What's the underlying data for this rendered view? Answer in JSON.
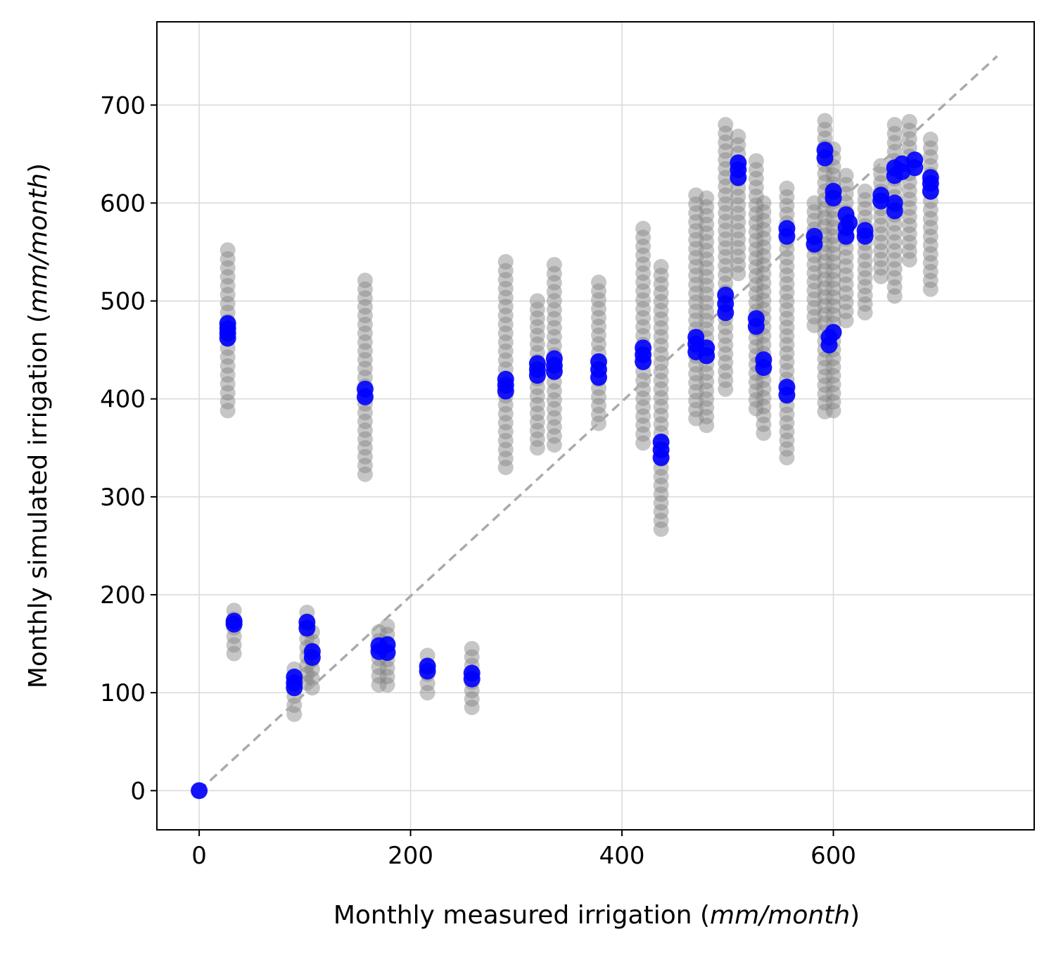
{
  "chart_data": {
    "type": "scatter",
    "xlabel": {
      "prefix": "Monthly measured irrigation (",
      "unit": "mm/month",
      "suffix": ")"
    },
    "ylabel": {
      "prefix": "Monthly simulated irrigation (",
      "unit": "mm/month",
      "suffix": ")"
    },
    "xlim": [
      -40,
      790
    ],
    "ylim": [
      -40,
      785
    ],
    "xticks": [
      0,
      200,
      400,
      600
    ],
    "yticks": [
      0,
      100,
      200,
      300,
      400,
      500,
      600,
      700
    ],
    "grid": true,
    "legend": false,
    "reference_line": {
      "x": [
        0,
        755
      ],
      "y": [
        0,
        750
      ],
      "style": "dashed",
      "color": "#aaaaaa"
    },
    "colors": {
      "ensemble": "#808080",
      "highlight": "#0000ff",
      "grid": "#d9d9d9"
    },
    "ensemble_ranges": [
      {
        "x": 0,
        "ymin": 0,
        "ymax": 0
      },
      {
        "x": 27,
        "ymin": 388,
        "ymax": 552
      },
      {
        "x": 33,
        "ymin": 140,
        "ymax": 184
      },
      {
        "x": 90,
        "ymin": 78,
        "ymax": 124
      },
      {
        "x": 102,
        "ymin": 110,
        "ymax": 182
      },
      {
        "x": 107,
        "ymin": 105,
        "ymax": 162
      },
      {
        "x": 157,
        "ymin": 323,
        "ymax": 521
      },
      {
        "x": 170,
        "ymin": 108,
        "ymax": 162
      },
      {
        "x": 178,
        "ymin": 108,
        "ymax": 168
      },
      {
        "x": 216,
        "ymin": 100,
        "ymax": 138
      },
      {
        "x": 258,
        "ymin": 85,
        "ymax": 145
      },
      {
        "x": 290,
        "ymin": 330,
        "ymax": 540
      },
      {
        "x": 320,
        "ymin": 350,
        "ymax": 500
      },
      {
        "x": 336,
        "ymin": 353,
        "ymax": 537
      },
      {
        "x": 378,
        "ymin": 375,
        "ymax": 519
      },
      {
        "x": 420,
        "ymin": 355,
        "ymax": 574
      },
      {
        "x": 437,
        "ymin": 267,
        "ymax": 535
      },
      {
        "x": 470,
        "ymin": 380,
        "ymax": 608
      },
      {
        "x": 480,
        "ymin": 373,
        "ymax": 605
      },
      {
        "x": 498,
        "ymin": 410,
        "ymax": 680
      },
      {
        "x": 510,
        "ymin": 528,
        "ymax": 668
      },
      {
        "x": 527,
        "ymin": 390,
        "ymax": 643
      },
      {
        "x": 534,
        "ymin": 365,
        "ymax": 600
      },
      {
        "x": 556,
        "ymin": 340,
        "ymax": 615
      },
      {
        "x": 582,
        "ymin": 475,
        "ymax": 600
      },
      {
        "x": 592,
        "ymin": 387,
        "ymax": 684
      },
      {
        "x": 600,
        "ymin": 388,
        "ymax": 655
      },
      {
        "x": 612,
        "ymin": 480,
        "ymax": 628
      },
      {
        "x": 630,
        "ymin": 488,
        "ymax": 612
      },
      {
        "x": 645,
        "ymin": 525,
        "ymax": 638
      },
      {
        "x": 658,
        "ymin": 505,
        "ymax": 680
      },
      {
        "x": 672,
        "ymin": 542,
        "ymax": 683
      },
      {
        "x": 692,
        "ymin": 512,
        "ymax": 665
      }
    ],
    "highlight_points": [
      {
        "x": 0,
        "y": 0
      },
      {
        "x": 27,
        "y": 462
      },
      {
        "x": 27,
        "y": 467
      },
      {
        "x": 27,
        "y": 472
      },
      {
        "x": 27,
        "y": 477
      },
      {
        "x": 33,
        "y": 170
      },
      {
        "x": 33,
        "y": 173
      },
      {
        "x": 90,
        "y": 105
      },
      {
        "x": 90,
        "y": 110
      },
      {
        "x": 90,
        "y": 116
      },
      {
        "x": 102,
        "y": 166
      },
      {
        "x": 102,
        "y": 172
      },
      {
        "x": 107,
        "y": 136
      },
      {
        "x": 107,
        "y": 142
      },
      {
        "x": 157,
        "y": 402
      },
      {
        "x": 157,
        "y": 410
      },
      {
        "x": 170,
        "y": 142
      },
      {
        "x": 170,
        "y": 148
      },
      {
        "x": 178,
        "y": 141
      },
      {
        "x": 178,
        "y": 149
      },
      {
        "x": 216,
        "y": 122
      },
      {
        "x": 216,
        "y": 127
      },
      {
        "x": 258,
        "y": 114
      },
      {
        "x": 258,
        "y": 120
      },
      {
        "x": 290,
        "y": 408
      },
      {
        "x": 290,
        "y": 414
      },
      {
        "x": 290,
        "y": 420
      },
      {
        "x": 320,
        "y": 424
      },
      {
        "x": 320,
        "y": 430
      },
      {
        "x": 320,
        "y": 436
      },
      {
        "x": 336,
        "y": 428
      },
      {
        "x": 336,
        "y": 434
      },
      {
        "x": 336,
        "y": 441
      },
      {
        "x": 378,
        "y": 422
      },
      {
        "x": 378,
        "y": 430
      },
      {
        "x": 378,
        "y": 438
      },
      {
        "x": 420,
        "y": 438
      },
      {
        "x": 420,
        "y": 445
      },
      {
        "x": 420,
        "y": 452
      },
      {
        "x": 437,
        "y": 340
      },
      {
        "x": 437,
        "y": 348
      },
      {
        "x": 437,
        "y": 356
      },
      {
        "x": 470,
        "y": 448
      },
      {
        "x": 470,
        "y": 456
      },
      {
        "x": 470,
        "y": 463
      },
      {
        "x": 480,
        "y": 444
      },
      {
        "x": 480,
        "y": 452
      },
      {
        "x": 498,
        "y": 488
      },
      {
        "x": 498,
        "y": 497
      },
      {
        "x": 498,
        "y": 506
      },
      {
        "x": 510,
        "y": 626
      },
      {
        "x": 510,
        "y": 634
      },
      {
        "x": 510,
        "y": 641
      },
      {
        "x": 527,
        "y": 474
      },
      {
        "x": 527,
        "y": 482
      },
      {
        "x": 534,
        "y": 432
      },
      {
        "x": 534,
        "y": 440
      },
      {
        "x": 556,
        "y": 404
      },
      {
        "x": 556,
        "y": 412
      },
      {
        "x": 556,
        "y": 566
      },
      {
        "x": 556,
        "y": 574
      },
      {
        "x": 582,
        "y": 558
      },
      {
        "x": 582,
        "y": 566
      },
      {
        "x": 592,
        "y": 646
      },
      {
        "x": 592,
        "y": 654
      },
      {
        "x": 596,
        "y": 455
      },
      {
        "x": 596,
        "y": 463
      },
      {
        "x": 600,
        "y": 468
      },
      {
        "x": 600,
        "y": 605
      },
      {
        "x": 600,
        "y": 612
      },
      {
        "x": 612,
        "y": 566
      },
      {
        "x": 612,
        "y": 575
      },
      {
        "x": 612,
        "y": 588
      },
      {
        "x": 615,
        "y": 580
      },
      {
        "x": 630,
        "y": 566
      },
      {
        "x": 630,
        "y": 572
      },
      {
        "x": 645,
        "y": 602
      },
      {
        "x": 645,
        "y": 608
      },
      {
        "x": 658,
        "y": 592
      },
      {
        "x": 658,
        "y": 600
      },
      {
        "x": 658,
        "y": 628
      },
      {
        "x": 658,
        "y": 636
      },
      {
        "x": 665,
        "y": 632
      },
      {
        "x": 665,
        "y": 640
      },
      {
        "x": 677,
        "y": 636
      },
      {
        "x": 677,
        "y": 644
      },
      {
        "x": 692,
        "y": 612
      },
      {
        "x": 692,
        "y": 620
      },
      {
        "x": 692,
        "y": 626
      }
    ]
  }
}
